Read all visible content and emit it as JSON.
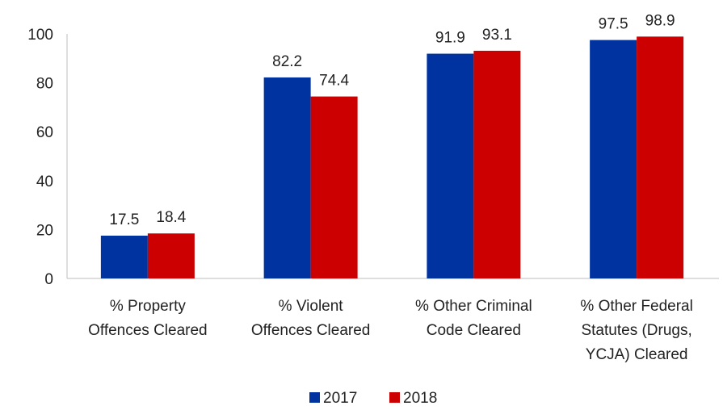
{
  "chart_data": {
    "type": "bar",
    "categories": [
      [
        "% Property",
        "Offences Cleared"
      ],
      [
        "% Violent",
        "Offences Cleared"
      ],
      [
        "% Other Criminal",
        "Code Cleared"
      ],
      [
        "% Other Federal",
        "Statutes (Drugs,",
        "YCJA) Cleared"
      ]
    ],
    "series": [
      {
        "name": "2017",
        "color": "#0033a0",
        "values": [
          17.5,
          82.2,
          91.9,
          97.5
        ]
      },
      {
        "name": "2018",
        "color": "#cc0000",
        "values": [
          18.4,
          74.4,
          93.1,
          98.9
        ]
      }
    ],
    "yticks": [
      0,
      20,
      40,
      60,
      80,
      100
    ],
    "ylim": [
      0,
      100
    ],
    "grid": false,
    "legend_position": "bottom"
  }
}
